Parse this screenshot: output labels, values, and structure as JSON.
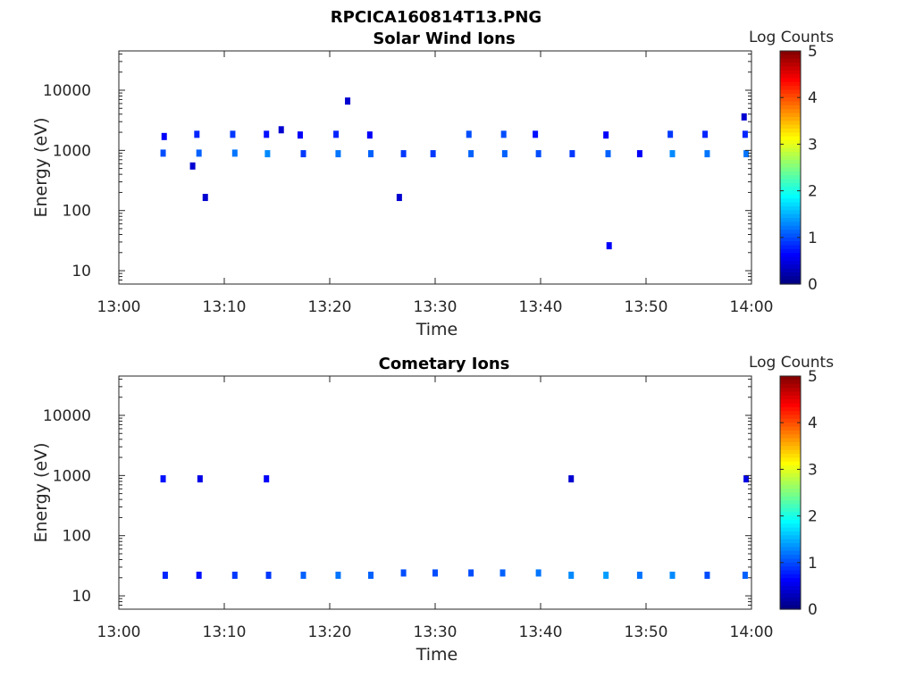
{
  "page": {
    "title": "RPCICA160814T13.PNG"
  },
  "chart_data": [
    {
      "type": "heatmap",
      "title": "Solar Wind Ions",
      "xlabel": "Time",
      "ylabel": "Energy (eV)",
      "xticks": [
        "13:00",
        "13:10",
        "13:20",
        "13:30",
        "13:40",
        "13:50",
        "14:00"
      ],
      "xlim_minutes": [
        0,
        60
      ],
      "yscale": "log",
      "ylim": [
        6,
        45000
      ],
      "yticks": [
        "10",
        "100",
        "1000",
        "10000"
      ],
      "colorbar": {
        "label": "Log Counts",
        "range": [
          0,
          5
        ],
        "ticks": [
          "0",
          "1",
          "2",
          "3",
          "4",
          "5"
        ]
      },
      "cells": [
        [
          4.2,
          900,
          1.0
        ],
        [
          4.3,
          1700,
          0.6
        ],
        [
          7.0,
          550,
          0.4
        ],
        [
          7.4,
          1850,
          0.8
        ],
        [
          7.6,
          900,
          1.1
        ],
        [
          8.2,
          165,
          0.4
        ],
        [
          10.8,
          1850,
          0.9
        ],
        [
          11.0,
          900,
          1.2
        ],
        [
          14.0,
          1850,
          0.7
        ],
        [
          14.1,
          880,
          1.3
        ],
        [
          15.4,
          2200,
          0.4
        ],
        [
          17.2,
          1800,
          0.6
        ],
        [
          17.5,
          880,
          0.9
        ],
        [
          20.6,
          1850,
          0.8
        ],
        [
          20.8,
          880,
          1.2
        ],
        [
          21.7,
          6600,
          0.4
        ],
        [
          23.8,
          1800,
          0.6
        ],
        [
          23.9,
          880,
          1.1
        ],
        [
          26.6,
          165,
          0.4
        ],
        [
          27.0,
          880,
          0.9
        ],
        [
          29.8,
          880,
          0.9
        ],
        [
          33.2,
          1850,
          1.0
        ],
        [
          33.4,
          880,
          1.1
        ],
        [
          36.5,
          1850,
          1.0
        ],
        [
          36.6,
          880,
          1.1
        ],
        [
          39.5,
          1850,
          0.7
        ],
        [
          39.8,
          880,
          1.0
        ],
        [
          43.0,
          880,
          0.9
        ],
        [
          46.2,
          1800,
          0.6
        ],
        [
          46.4,
          880,
          1.1
        ],
        [
          46.5,
          26,
          0.6
        ],
        [
          49.4,
          880,
          0.6
        ],
        [
          52.3,
          1850,
          0.9
        ],
        [
          52.5,
          880,
          1.3
        ],
        [
          55.6,
          1850,
          0.8
        ],
        [
          55.8,
          880,
          1.2
        ],
        [
          59.3,
          3600,
          0.4
        ],
        [
          59.4,
          1850,
          0.8
        ],
        [
          59.5,
          880,
          1.2
        ]
      ]
    },
    {
      "type": "heatmap",
      "title": "Cometary Ions",
      "xlabel": "Time",
      "ylabel": "Energy (eV)",
      "xticks": [
        "13:00",
        "13:10",
        "13:20",
        "13:30",
        "13:40",
        "13:50",
        "14:00"
      ],
      "xlim_minutes": [
        0,
        60
      ],
      "yscale": "log",
      "ylim": [
        6,
        45000
      ],
      "yticks": [
        "10",
        "100",
        "1000",
        "10000"
      ],
      "colorbar": {
        "label": "Log Counts",
        "range": [
          0,
          5
        ],
        "ticks": [
          "0",
          "1",
          "2",
          "3",
          "4",
          "5"
        ]
      },
      "cells": [
        [
          4.2,
          880,
          0.7
        ],
        [
          7.7,
          880,
          0.5
        ],
        [
          14.0,
          880,
          0.6
        ],
        [
          42.9,
          880,
          0.4
        ],
        [
          59.5,
          880,
          0.5
        ],
        [
          4.4,
          22,
          0.8
        ],
        [
          7.6,
          22,
          0.7
        ],
        [
          11.0,
          22,
          0.9
        ],
        [
          14.2,
          22,
          0.9
        ],
        [
          17.5,
          22,
          1.1
        ],
        [
          20.8,
          22,
          1.2
        ],
        [
          23.9,
          22,
          1.1
        ],
        [
          27.0,
          24,
          1.0
        ],
        [
          30.0,
          24,
          1.0
        ],
        [
          33.4,
          24,
          1.0
        ],
        [
          36.4,
          24,
          1.1
        ],
        [
          39.8,
          24,
          1.2
        ],
        [
          42.9,
          22,
          1.3
        ],
        [
          46.2,
          22,
          1.4
        ],
        [
          49.4,
          22,
          1.2
        ],
        [
          52.5,
          22,
          1.3
        ],
        [
          55.8,
          22,
          1.0
        ],
        [
          59.4,
          22,
          1.1
        ]
      ]
    }
  ]
}
